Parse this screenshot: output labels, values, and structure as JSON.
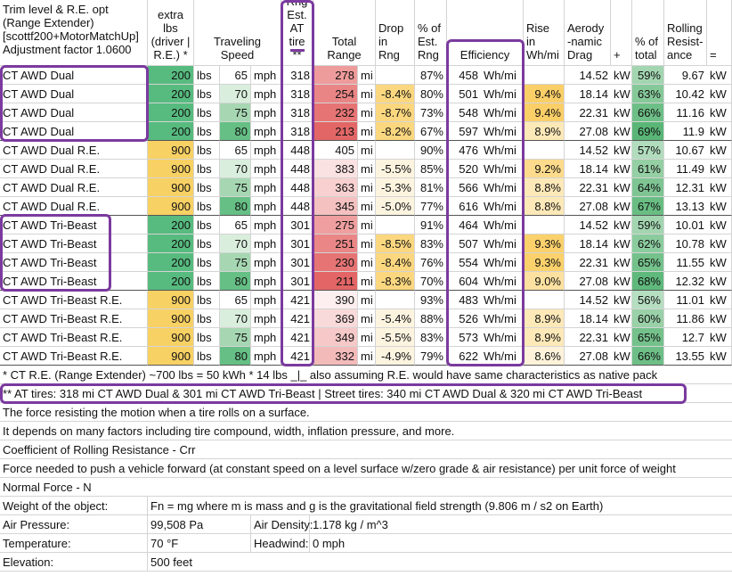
{
  "header": {
    "trim": "Trim level & R.E. opt\n(Range Extender)\n[scottf200+MotorMatchUp]\nAdjustment factor 1.0600",
    "extra_lbs": "extra\nlbs\n(driver |\nR.E.) *",
    "speed": "Traveling\nSpeed",
    "rng_est": "Rng\nEst.\nAT\ntire **",
    "total_range": "Total\nRange",
    "drop": "Drop\nin\nRng",
    "pct_est": "% of\nEst.\nRng",
    "efficiency": "Efficiency",
    "rise": "Rise\nin\nWh/mi",
    "aero": "Aerody\n-namic\nDrag",
    "plus": "+",
    "pct_total": "% of\ntotal",
    "rolling": "Rolling\nResist-\nance",
    "equals": "="
  },
  "table": {
    "rows": [
      [
        "CT AWD Dual",
        "200",
        "lbs",
        "65",
        "mph",
        "318",
        "278",
        "mi",
        null,
        "87%",
        "458",
        "Wh/mi",
        null,
        "14.52",
        "kW",
        "59%",
        "9.67",
        "kW"
      ],
      [
        "CT AWD Dual",
        "200",
        "lbs",
        "70",
        "mph",
        "318",
        "254",
        "mi",
        "-8.4%",
        "80%",
        "501",
        "Wh/mi",
        "9.4%",
        "18.14",
        "kW",
        "63%",
        "10.42",
        "kW"
      ],
      [
        "CT AWD Dual",
        "200",
        "lbs",
        "75",
        "mph",
        "318",
        "232",
        "mi",
        "-8.7%",
        "73%",
        "548",
        "Wh/mi",
        "9.4%",
        "22.31",
        "kW",
        "66%",
        "11.16",
        "kW"
      ],
      [
        "CT AWD Dual",
        "200",
        "lbs",
        "80",
        "mph",
        "318",
        "213",
        "mi",
        "-8.2%",
        "67%",
        "597",
        "Wh/mi",
        "8.9%",
        "27.08",
        "kW",
        "69%",
        "11.9",
        "kW"
      ],
      [
        "CT AWD Dual R.E.",
        "900",
        "lbs",
        "65",
        "mph",
        "448",
        "405",
        "mi",
        null,
        "90%",
        "476",
        "Wh/mi",
        null,
        "14.52",
        "kW",
        "57%",
        "10.67",
        "kW"
      ],
      [
        "CT AWD Dual R.E.",
        "900",
        "lbs",
        "70",
        "mph",
        "448",
        "383",
        "mi",
        "-5.5%",
        "85%",
        "520",
        "Wh/mi",
        "9.2%",
        "18.14",
        "kW",
        "61%",
        "11.49",
        "kW"
      ],
      [
        "CT AWD Dual R.E.",
        "900",
        "lbs",
        "75",
        "mph",
        "448",
        "363",
        "mi",
        "-5.3%",
        "81%",
        "566",
        "Wh/mi",
        "8.8%",
        "22.31",
        "kW",
        "64%",
        "12.31",
        "kW"
      ],
      [
        "CT AWD Dual R.E.",
        "900",
        "lbs",
        "80",
        "mph",
        "448",
        "345",
        "mi",
        "-5.0%",
        "77%",
        "616",
        "Wh/mi",
        "8.8%",
        "27.08",
        "kW",
        "67%",
        "13.13",
        "kW"
      ],
      [
        "CT AWD Tri-Beast",
        "200",
        "lbs",
        "65",
        "mph",
        "301",
        "275",
        "mi",
        null,
        "91%",
        "464",
        "Wh/mi",
        null,
        "14.52",
        "kW",
        "59%",
        "10.01",
        "kW"
      ],
      [
        "CT AWD Tri-Beast",
        "200",
        "lbs",
        "70",
        "mph",
        "301",
        "251",
        "mi",
        "-8.5%",
        "83%",
        "507",
        "Wh/mi",
        "9.3%",
        "18.14",
        "kW",
        "62%",
        "10.78",
        "kW"
      ],
      [
        "CT AWD Tri-Beast",
        "200",
        "lbs",
        "75",
        "mph",
        "301",
        "230",
        "mi",
        "-8.4%",
        "76%",
        "554",
        "Wh/mi",
        "9.3%",
        "22.31",
        "kW",
        "65%",
        "11.55",
        "kW"
      ],
      [
        "CT AWD Tri-Beast",
        "200",
        "lbs",
        "80",
        "mph",
        "301",
        "211",
        "mi",
        "-8.3%",
        "70%",
        "604",
        "Wh/mi",
        "9.0%",
        "27.08",
        "kW",
        "68%",
        "12.32",
        "kW"
      ],
      [
        "CT AWD Tri-Beast R.E.",
        "900",
        "lbs",
        "65",
        "mph",
        "421",
        "390",
        "mi",
        null,
        "93%",
        "483",
        "Wh/mi",
        null,
        "14.52",
        "kW",
        "56%",
        "11.01",
        "kW"
      ],
      [
        "CT AWD Tri-Beast R.E.",
        "900",
        "lbs",
        "70",
        "mph",
        "421",
        "369",
        "mi",
        "-5.4%",
        "88%",
        "526",
        "Wh/mi",
        "8.9%",
        "18.14",
        "kW",
        "60%",
        "11.86",
        "kW"
      ],
      [
        "CT AWD Tri-Beast R.E.",
        "900",
        "lbs",
        "75",
        "mph",
        "421",
        "349",
        "mi",
        "-5.5%",
        "83%",
        "573",
        "Wh/mi",
        "8.9%",
        "22.31",
        "kW",
        "65%",
        "12.7",
        "kW"
      ],
      [
        "CT AWD Tri-Beast R.E.",
        "900",
        "lbs",
        "80",
        "mph",
        "421",
        "332",
        "mi",
        "-4.9%",
        "79%",
        "622",
        "Wh/mi",
        "8.6%",
        "27.08",
        "kW",
        "66%",
        "13.55",
        "kW"
      ]
    ]
  },
  "notes": [
    "* CT R.E. (Range Extender) ~700 lbs = 50 kWh * 14 lbs _|_ also assuming R.E. would have same characteristics as native pack",
    "** AT tires: 318 mi CT AWD Dual & 301 mi CT AWD Tri-Beast   |   Street tires: 340 mi CT AWD Dual & 320 mi CT AWD Tri-Beast",
    "The force resisting the motion when a tire rolls on a surface.",
    "It depends on many factors including tire compound, width, inflation pressure, and more.",
    "Coefficient of Rolling Resistance - Crr",
    "Force needed to push a vehicle forward (at constant speed on a level surface w/zero grade & air resistance) per unit force of weight",
    "Normal Force - N"
  ],
  "info": [
    [
      "Weight of the object:",
      "Fn = mg where m is mass and g is the gravitational field strength (9.806 m / s2 on Earth)"
    ],
    [
      "Air Pressure:",
      "99,508 Pa",
      "Air Density:",
      "1.178 kg / m^3"
    ],
    [
      "Temperature:",
      "70 °F",
      "Headwind:",
      "0 mph"
    ],
    [
      "Elevation:",
      "500 feet"
    ]
  ]
}
